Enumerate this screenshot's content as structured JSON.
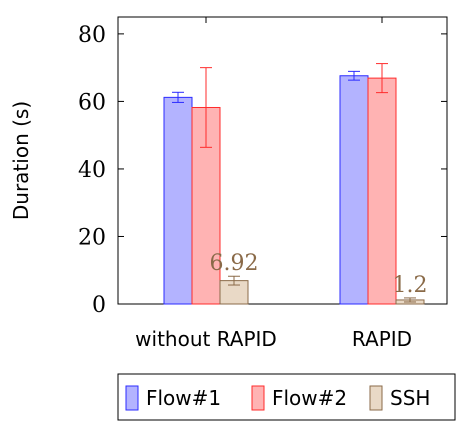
{
  "chart_data": {
    "type": "bar",
    "categories": [
      "without RAPID",
      "RAPID"
    ],
    "series": [
      {
        "name": "Flow#1",
        "values": [
          61.2,
          67.6
        ],
        "errors": [
          1.5,
          1.3
        ],
        "fill": "#b3b3ff",
        "stroke": "#2b2bff"
      },
      {
        "name": "Flow#2",
        "values": [
          58.2,
          66.9
        ],
        "errors": [
          11.8,
          4.3
        ],
        "fill": "#ffb3b3",
        "stroke": "#ff2b2b"
      },
      {
        "name": "SSH",
        "values": [
          6.92,
          1.2
        ],
        "errors": [
          1.3,
          0.6
        ],
        "fill": "#e9d9c6",
        "stroke": "#8a6a48"
      }
    ],
    "data_labels": [
      "6.92",
      "1.2"
    ],
    "ylabel": "Duration (s)",
    "ylim": [
      0,
      85
    ],
    "yticks": [
      0,
      20,
      40,
      60,
      80
    ],
    "grid": false,
    "legend_position": "bottom"
  }
}
